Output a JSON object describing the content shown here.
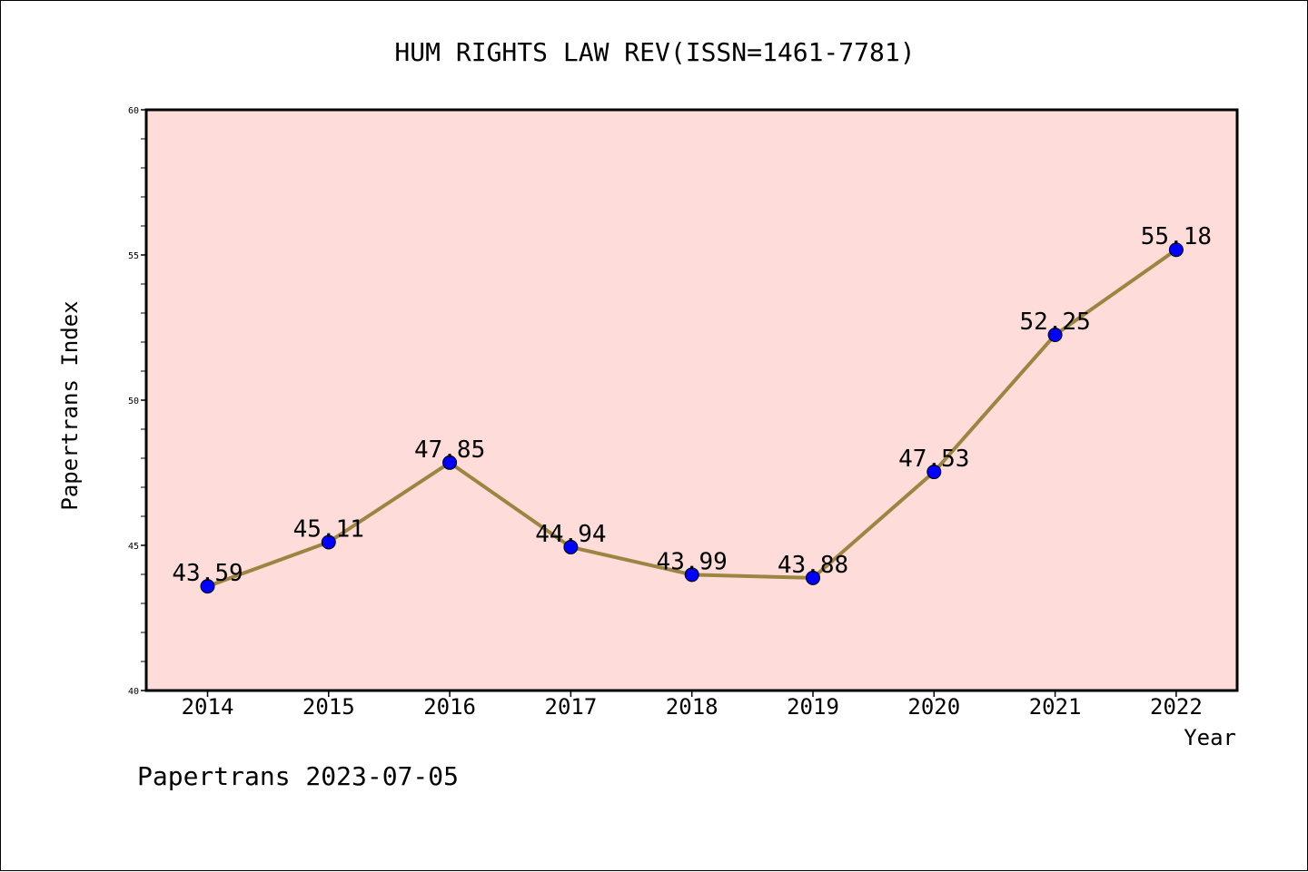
{
  "chart_data": {
    "type": "line",
    "title": "HUM RIGHTS LAW REV(ISSN=1461-7781)",
    "xlabel": "Year",
    "ylabel": "Papertrans Index",
    "categories": [
      "2014",
      "2015",
      "2016",
      "2017",
      "2018",
      "2019",
      "2020",
      "2021",
      "2022"
    ],
    "series": [
      {
        "values": [
          43.59,
          45.11,
          47.85,
          44.94,
          43.99,
          43.88,
          47.53,
          52.25,
          55.18
        ],
        "labels": [
          "43.59",
          "45.11",
          "47.85",
          "44.94",
          "43.99",
          "43.88",
          "47.53",
          "52.25",
          "55.18"
        ]
      }
    ],
    "ylim": [
      40,
      60
    ],
    "yticks": [
      "40",
      "45",
      "50",
      "55",
      "60"
    ],
    "grid": false,
    "colors": {
      "plot_background": "#fddcd9",
      "line": "#9c8540",
      "marker": "#0000ff"
    }
  },
  "footer": {
    "text": "Papertrans 2023-07-05"
  }
}
